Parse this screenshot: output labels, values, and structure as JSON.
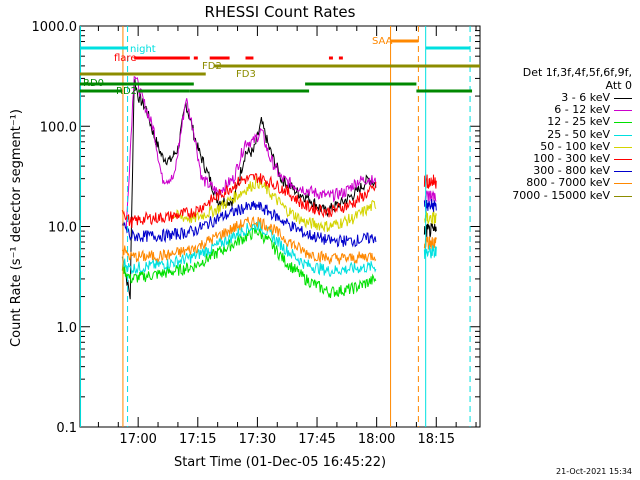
{
  "chart_data": {
    "type": "line",
    "title": "RHESSI Count Rates",
    "xlabel": "Start Time (01-Dec-05 16:45:22)",
    "ylabel": "Count Rate (s⁻¹ detector segment⁻¹)",
    "yscale": "log",
    "ylim": [
      0.1,
      1000
    ],
    "y_ticks": [
      "0.1",
      "1.0",
      "10.0",
      "100.0",
      "1000.0"
    ],
    "xlim": [
      "16:45:22",
      "18:26:00"
    ],
    "x_ticks": [
      {
        "t": "17:00",
        "label": "17:00"
      },
      {
        "t": "17:15",
        "label": "17:15"
      },
      {
        "t": "17:30",
        "label": "17:30"
      },
      {
        "t": "17:45",
        "label": "17:45"
      },
      {
        "t": "18:00",
        "label": "18:00"
      },
      {
        "t": "18:15",
        "label": "18:15"
      }
    ],
    "legend_title": [
      "Det 1f,3f,4f,5f,6f,9f,",
      "Att 0"
    ],
    "legend_placement": "right",
    "series": [
      {
        "name": "3 - 6 keV",
        "color": "#000000",
        "points": [
          [
            "16:56",
            "5"
          ],
          [
            "16:58",
            "2"
          ],
          [
            "16:59",
            "300"
          ],
          [
            "17:00",
            "200"
          ],
          [
            "17:02",
            "150"
          ],
          [
            "17:04",
            "80"
          ],
          [
            "17:06",
            "50"
          ],
          [
            "17:08",
            "45"
          ],
          [
            "17:10",
            "60"
          ],
          [
            "17:11",
            "100"
          ],
          [
            "17:12",
            "170"
          ],
          [
            "17:13",
            "120"
          ],
          [
            "17:15",
            "60"
          ],
          [
            "17:18",
            "30"
          ],
          [
            "17:20",
            "18"
          ],
          [
            "17:24",
            "18"
          ],
          [
            "17:27",
            "55"
          ],
          [
            "17:29",
            "55"
          ],
          [
            "17:31",
            "110"
          ],
          [
            "17:33",
            "60"
          ],
          [
            "17:36",
            "30"
          ],
          [
            "17:40",
            "22"
          ],
          [
            "17:43",
            "19"
          ],
          [
            "17:47",
            "14"
          ],
          [
            "17:51",
            "17"
          ],
          [
            "17:55",
            "22"
          ],
          [
            "17:58",
            "30"
          ],
          [
            "18:00",
            "26"
          ]
        ]
      },
      {
        "name": "6 - 12 keV",
        "color": "#cc00cc",
        "points": [
          [
            "16:57",
            "9"
          ],
          [
            "16:59",
            "350"
          ],
          [
            "17:00",
            "250"
          ],
          [
            "17:02",
            "150"
          ],
          [
            "17:04",
            "90"
          ],
          [
            "17:06",
            "30"
          ],
          [
            "17:09",
            "30"
          ],
          [
            "17:11",
            "100"
          ],
          [
            "17:12",
            "190"
          ],
          [
            "17:14",
            "90"
          ],
          [
            "17:16",
            "30"
          ],
          [
            "17:20",
            "22"
          ],
          [
            "17:24",
            "30"
          ],
          [
            "17:27",
            "70"
          ],
          [
            "17:29",
            "70"
          ],
          [
            "17:31",
            "90"
          ],
          [
            "17:33",
            "50"
          ],
          [
            "17:36",
            "30"
          ],
          [
            "17:40",
            "25"
          ],
          [
            "17:44",
            "22"
          ],
          [
            "17:48",
            "20"
          ],
          [
            "17:52",
            "22"
          ],
          [
            "17:55",
            "28"
          ],
          [
            "17:58",
            "30"
          ],
          [
            "18:00",
            "27"
          ]
        ]
      },
      {
        "name": "12 - 25 keV",
        "color": "#00e000",
        "points": [
          [
            "16:56",
            "4"
          ],
          [
            "16:58",
            "3"
          ],
          [
            "17:02",
            "3.2"
          ],
          [
            "17:08",
            "3.5"
          ],
          [
            "17:14",
            "4"
          ],
          [
            "17:20",
            "5.5"
          ],
          [
            "17:26",
            "7.5"
          ],
          [
            "17:30",
            "9"
          ],
          [
            "17:33",
            "7"
          ],
          [
            "17:37",
            "4.5"
          ],
          [
            "17:42",
            "3"
          ],
          [
            "17:48",
            "2.2"
          ],
          [
            "17:54",
            "2.4"
          ],
          [
            "18:00",
            "3"
          ]
        ]
      },
      {
        "name": "25 - 50 keV",
        "color": "#00e0e0",
        "points": [
          [
            "16:56",
            "4.5"
          ],
          [
            "16:58",
            "3.8"
          ],
          [
            "17:02",
            "4"
          ],
          [
            "17:08",
            "4.3"
          ],
          [
            "17:14",
            "5"
          ],
          [
            "17:20",
            "6.5"
          ],
          [
            "17:26",
            "9"
          ],
          [
            "17:30",
            "10.5"
          ],
          [
            "17:33",
            "8.5"
          ],
          [
            "17:37",
            "6"
          ],
          [
            "17:42",
            "4.2"
          ],
          [
            "17:48",
            "3.6"
          ],
          [
            "17:54",
            "3.8"
          ],
          [
            "18:00",
            "4"
          ]
        ]
      },
      {
        "name": "50 - 100 keV",
        "color": "#d4d400",
        "points": [
          [
            "17:08",
            "13"
          ],
          [
            "17:14",
            "12"
          ],
          [
            "17:20",
            "15"
          ],
          [
            "17:26",
            "22"
          ],
          [
            "17:30",
            "28"
          ],
          [
            "17:33",
            "22"
          ],
          [
            "17:37",
            "15"
          ],
          [
            "17:42",
            "11"
          ],
          [
            "17:48",
            "10"
          ],
          [
            "17:54",
            "12"
          ],
          [
            "18:00",
            "17"
          ]
        ]
      },
      {
        "name": "100 - 300 keV",
        "color": "#ff0000",
        "points": [
          [
            "16:56",
            "15"
          ],
          [
            "16:58",
            "11"
          ],
          [
            "17:02",
            "12"
          ],
          [
            "17:08",
            "12.5"
          ],
          [
            "17:14",
            "14"
          ],
          [
            "17:20",
            "20"
          ],
          [
            "17:26",
            "29"
          ],
          [
            "17:30",
            "31"
          ],
          [
            "17:33",
            "28"
          ],
          [
            "17:37",
            "23"
          ],
          [
            "17:42",
            "16"
          ],
          [
            "17:48",
            "14"
          ],
          [
            "17:54",
            "17"
          ],
          [
            "18:00",
            "25"
          ]
        ]
      },
      {
        "name": "300 - 800 keV",
        "color": "#0000cc",
        "points": [
          [
            "16:56",
            "11"
          ],
          [
            "16:58",
            "8"
          ],
          [
            "17:02",
            "8"
          ],
          [
            "17:08",
            "8.2"
          ],
          [
            "17:14",
            "9"
          ],
          [
            "17:20",
            "12"
          ],
          [
            "17:26",
            "15"
          ],
          [
            "17:30",
            "16"
          ],
          [
            "17:33",
            "14"
          ],
          [
            "17:37",
            "11"
          ],
          [
            "17:42",
            "8.5"
          ],
          [
            "17:48",
            "7.2"
          ],
          [
            "17:54",
            "7.2"
          ],
          [
            "18:00",
            "7.8"
          ]
        ]
      },
      {
        "name": "800 - 7000 keV",
        "color": "#ff8800",
        "points": [
          [
            "16:56",
            "6"
          ],
          [
            "16:58",
            "5"
          ],
          [
            "17:02",
            "5"
          ],
          [
            "17:08",
            "5.2"
          ],
          [
            "17:14",
            "6"
          ],
          [
            "17:20",
            "8"
          ],
          [
            "17:26",
            "10.5"
          ],
          [
            "17:30",
            "11.5"
          ],
          [
            "17:33",
            "10"
          ],
          [
            "17:37",
            "7.5"
          ],
          [
            "17:42",
            "5.5"
          ],
          [
            "17:48",
            "4.8"
          ],
          [
            "17:54",
            "4.8"
          ],
          [
            "18:00",
            "5.2"
          ]
        ]
      },
      {
        "name": "7000 - 15000 keV",
        "color": "#8c8c00",
        "points": []
      }
    ],
    "segments": {
      "F": "flare",
      "S": "SAA",
      "N": "night",
      "RD0": "RD0",
      "RD2": "RD2",
      "FD2": "FD2",
      "FD3": "FD3"
    }
  },
  "footer": {
    "timestamp": "21-Oct-2021 15:34"
  }
}
